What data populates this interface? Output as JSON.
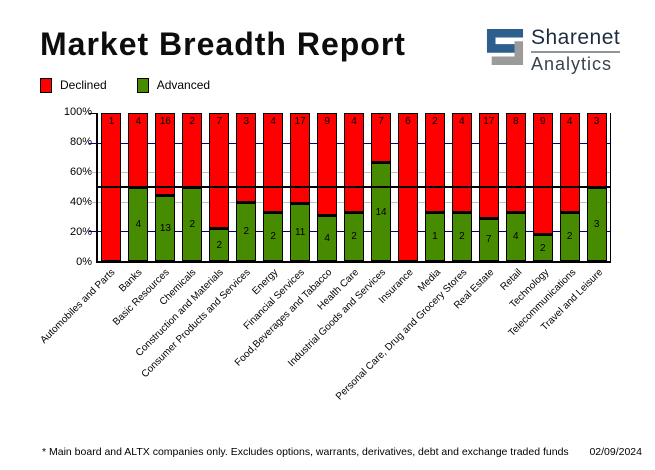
{
  "header": {
    "title": "Market Breadth Report",
    "logo": {
      "name": "Sharenet",
      "sub": "Analytics",
      "icon_blue": "#2d5f8e",
      "icon_gray": "#9b9b9b"
    }
  },
  "legend": {
    "items": [
      {
        "label": "Declined",
        "color": "#ff0000"
      },
      {
        "label": "Advanced",
        "color": "#478b00"
      }
    ]
  },
  "chart_data": {
    "type": "bar",
    "variant": "stacked-100-percent",
    "title": "Market Breadth Report",
    "categories": [
      "Automobiles and Parts",
      "Banks",
      "Basic Resources",
      "Chemicals",
      "Construction and Materials",
      "Consumer Products and Services",
      "Energy",
      "Financial Services",
      "Food,Beverages and Tabacco",
      "Health Care",
      "Industrial Goods and Services",
      "Insurance",
      "Media",
      "Personal Care, Drug and Grocery Stores",
      "Real Estate",
      "Retail",
      "Technology",
      "Telecommunications",
      "Travel and Leisure"
    ],
    "series": [
      {
        "name": "Declined",
        "color": "#ff0000",
        "values": [
          1,
          4,
          16,
          2,
          7,
          3,
          4,
          17,
          9,
          4,
          7,
          6,
          2,
          4,
          17,
          8,
          9,
          4,
          3
        ]
      },
      {
        "name": "Advanced",
        "color": "#478b00",
        "values": [
          0,
          4,
          13,
          2,
          2,
          2,
          2,
          11,
          4,
          2,
          14,
          0,
          1,
          2,
          7,
          4,
          2,
          2,
          3
        ]
      }
    ],
    "y_tick_labels": [
      "100%",
      "80%",
      "60%",
      "40%",
      "20%",
      "0%"
    ],
    "ylim": [
      0,
      100
    ],
    "grid": true,
    "gridlines": [
      {
        "value": 80,
        "color": "#000080"
      },
      {
        "value": 60,
        "color": "#c0c0c0"
      },
      {
        "value": 40,
        "color": "#c0c0c0"
      },
      {
        "value": 20,
        "color": "#000080"
      }
    ],
    "axis_ticks": [
      {
        "value": 100,
        "color": "#000000"
      },
      {
        "value": 80,
        "color": "#000080"
      },
      {
        "value": 60,
        "color": "#c0c0c0"
      },
      {
        "value": 40,
        "color": "#c0c0c0"
      },
      {
        "value": 20,
        "color": "#000080"
      }
    ],
    "reference_line": {
      "value": 50,
      "color": "#000000"
    },
    "legend_position": "top-left"
  },
  "footer": {
    "note": "* Main board and ALTX companies only. Excludes options, warrants, derivatives, debt and exchange traded funds",
    "date": "02/09/2024"
  }
}
